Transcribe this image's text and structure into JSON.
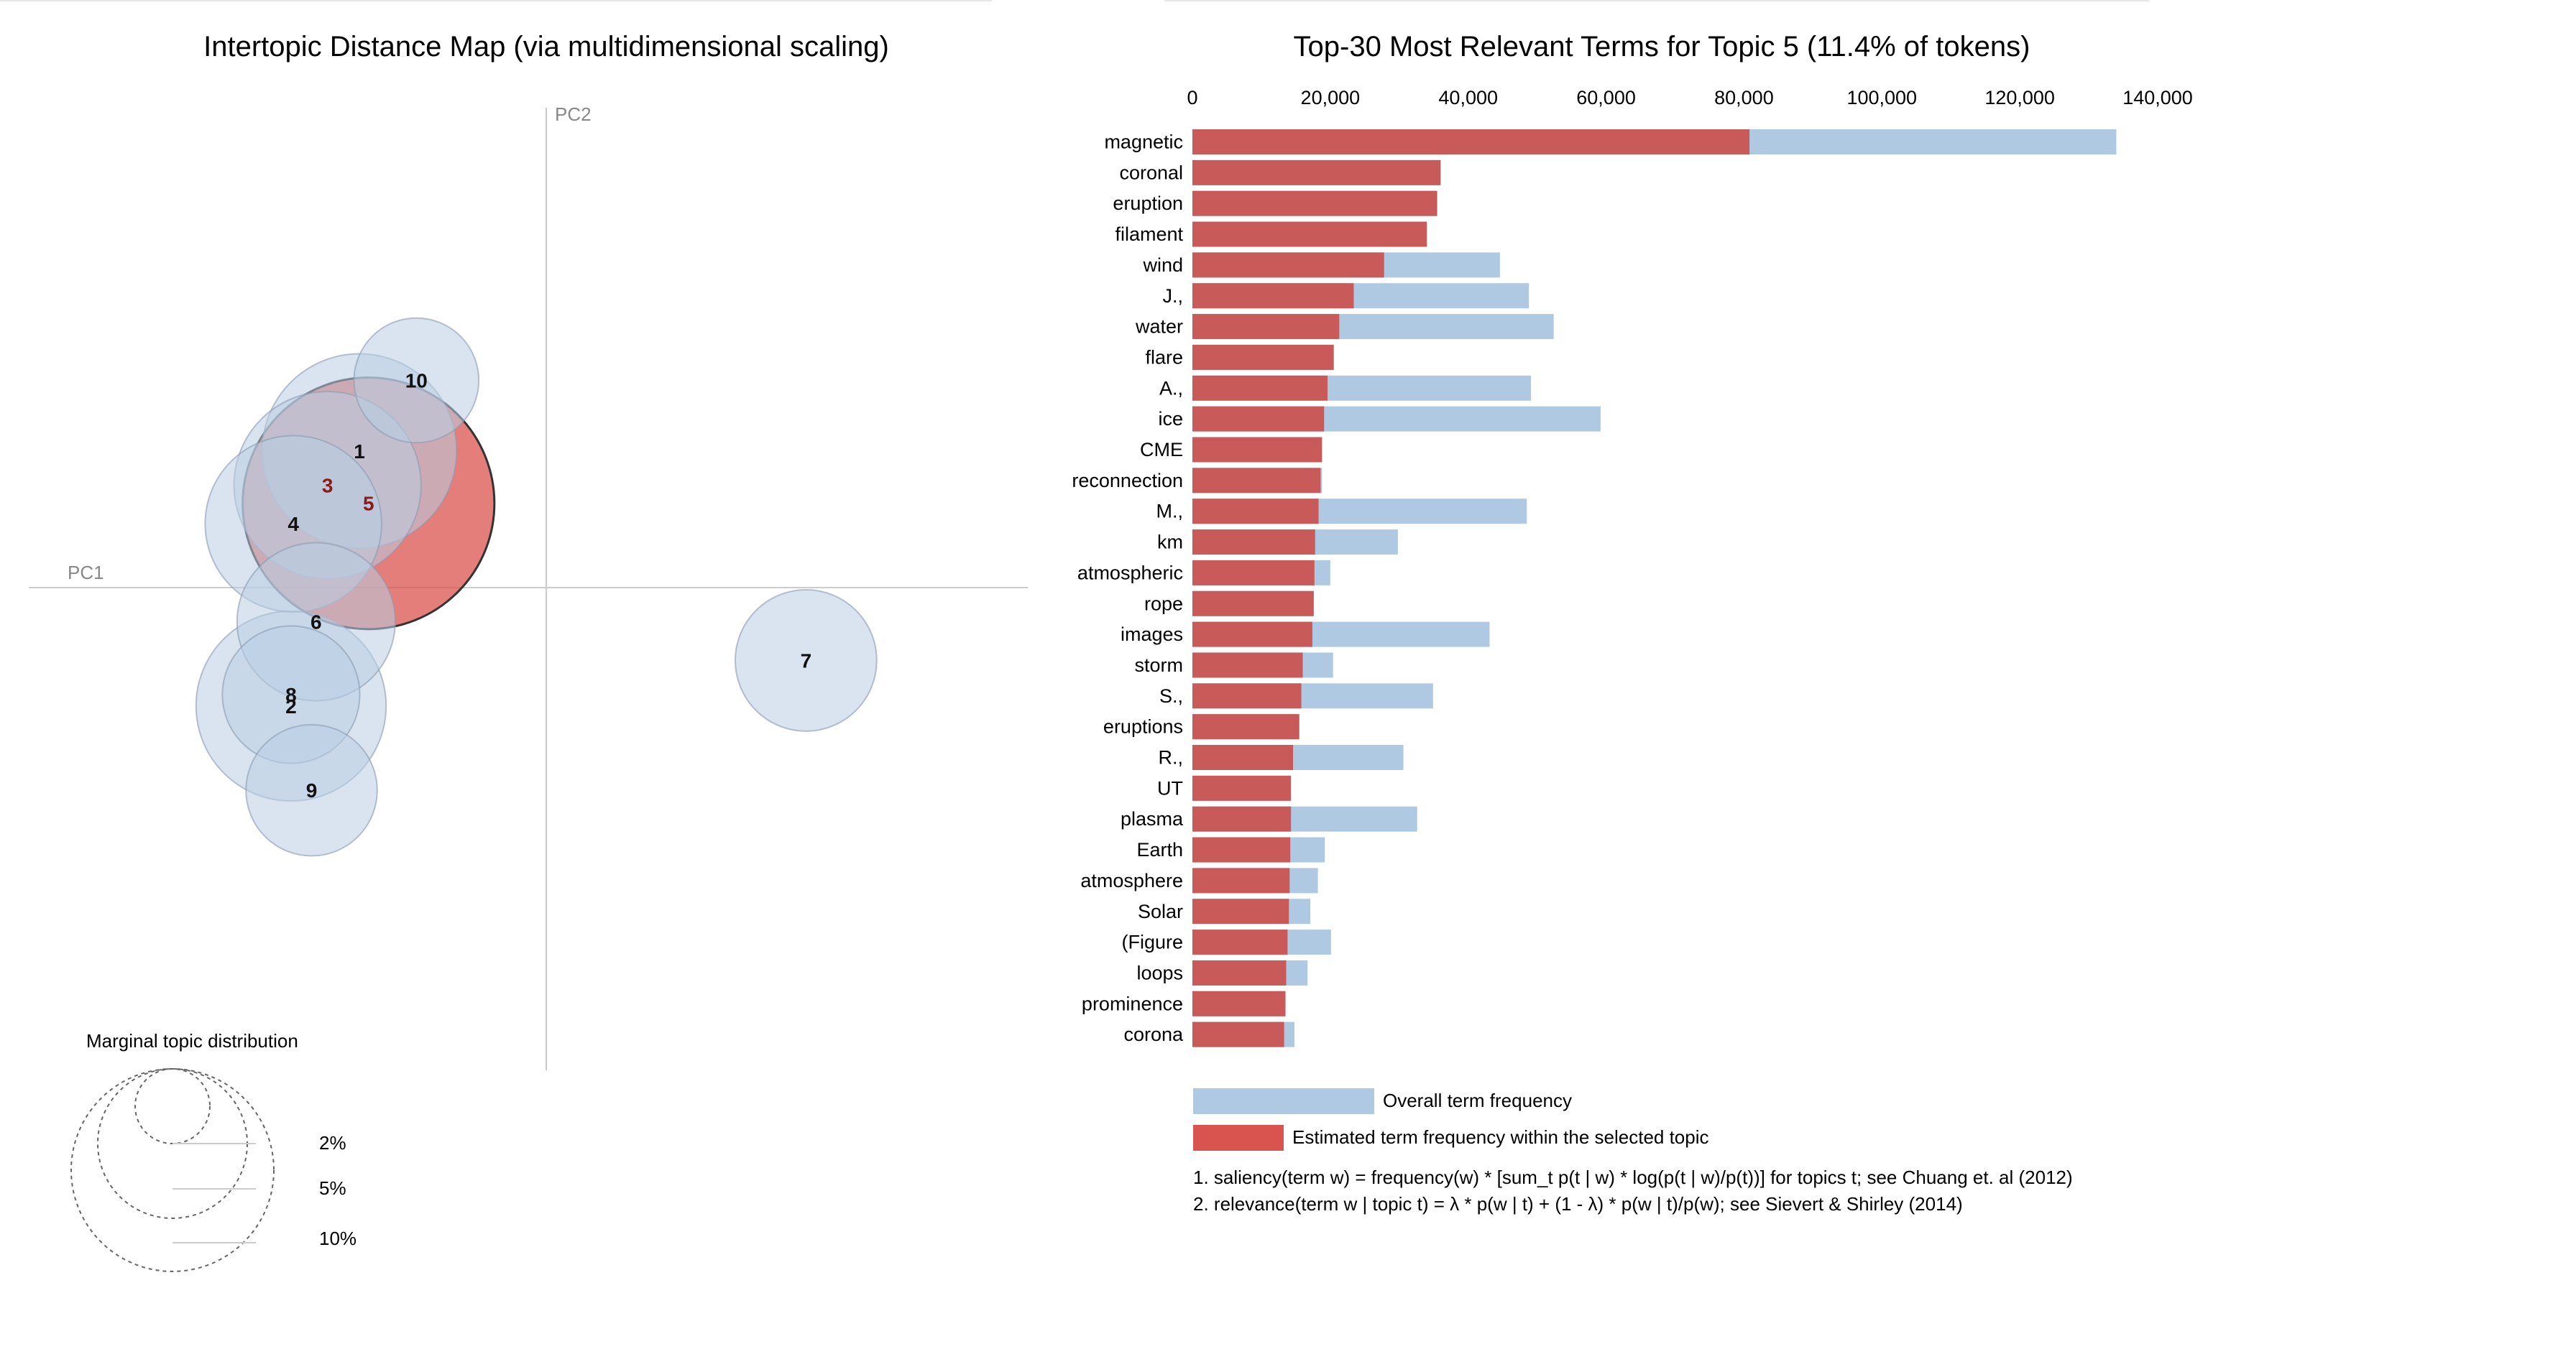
{
  "left_panel": {
    "title": "Intertopic Distance Map (via multidimensional scaling)",
    "axis_x_label": "PC1",
    "axis_y_label": "PC2",
    "selected_topic": "5",
    "bubbles": [
      {
        "topic": "1",
        "pc1": -0.082,
        "pc2": 0.06,
        "size_pct": 6.8
      },
      {
        "topic": "2",
        "pc1": -0.112,
        "pc2": -0.052,
        "size_pct": 6.5
      },
      {
        "topic": "3",
        "pc1": -0.096,
        "pc2": 0.045,
        "size_pct": 6.3
      },
      {
        "topic": "4",
        "pc1": -0.111,
        "pc2": 0.028,
        "size_pct": 5.6
      },
      {
        "topic": "5",
        "pc1": -0.078,
        "pc2": 0.037,
        "size_pct": 11.4
      },
      {
        "topic": "6",
        "pc1": -0.101,
        "pc2": -0.015,
        "size_pct": 4.5
      },
      {
        "topic": "7",
        "pc1": 0.114,
        "pc2": -0.032,
        "size_pct": 3.6
      },
      {
        "topic": "8",
        "pc1": -0.112,
        "pc2": -0.047,
        "size_pct": 3.4
      },
      {
        "topic": "9",
        "pc1": -0.103,
        "pc2": -0.089,
        "size_pct": 3.1
      },
      {
        "topic": "10",
        "pc1": -0.057,
        "pc2": 0.091,
        "size_pct": 2.8
      }
    ],
    "marginal": {
      "title": "Marginal topic distribution",
      "labels": [
        "2%",
        "5%",
        "10%"
      ],
      "values_pct": [
        2,
        5,
        10
      ]
    }
  },
  "chart_data": {
    "type": "bar",
    "title": "Top-30 Most Relevant Terms for Topic 5 (11.4% of tokens)",
    "orientation": "horizontal",
    "xlim": [
      0,
      140000
    ],
    "x_ticks": [
      "0",
      "20,000",
      "40,000",
      "60,000",
      "80,000",
      "100,000",
      "120,000",
      "140,000"
    ],
    "x_tick_values": [
      0,
      20000,
      40000,
      60000,
      80000,
      100000,
      120000,
      140000
    ],
    "categories": [
      "magnetic",
      "coronal",
      "eruption",
      "filament",
      "wind",
      "J.,",
      "water",
      "flare",
      "A.,",
      "ice",
      "CME",
      "reconnection",
      "M.,",
      "km",
      "atmospheric",
      "rope",
      "images",
      "storm",
      "S.,",
      "eruptions",
      "R.,",
      "UT",
      "plasma",
      "Earth",
      "atmosphere",
      "Solar",
      "(Figure",
      "loops",
      "prominence",
      "corona"
    ],
    "series": [
      {
        "name": "Overall term frequency",
        "color": "#b0c9e2",
        "values": [
          134000,
          36000,
          35500,
          34000,
          44600,
          48800,
          52400,
          20500,
          49100,
          59200,
          18800,
          18800,
          48500,
          29800,
          20000,
          17600,
          43100,
          20400,
          34900,
          15500,
          30600,
          14300,
          32600,
          19200,
          18200,
          17100,
          20100,
          16700,
          13500,
          14800
        ]
      },
      {
        "name": "Estimated term frequency within the selected topic",
        "color": "#c95a5a",
        "values": [
          80800,
          36000,
          35500,
          34000,
          27800,
          23400,
          21300,
          20500,
          19600,
          19100,
          18800,
          18600,
          18300,
          17800,
          17700,
          17600,
          17400,
          16000,
          15800,
          15500,
          14600,
          14300,
          14300,
          14200,
          14100,
          14000,
          13800,
          13600,
          13500,
          13300
        ]
      }
    ],
    "legend_position": "bottom-left"
  },
  "footnotes": [
    "1. saliency(term w) = frequency(w) * [sum_t p(t | w) * log(p(t | w)/p(t))] for topics t; see Chuang et. al (2012)",
    "2. relevance(term w | topic t) = λ * p(w | t) + (1 - λ) * p(w | t)/p(w); see Sievert & Shirley (2014)"
  ],
  "colors": {
    "bubble_fill": "#b9cde3",
    "bubble_stroke": "#8a9bb0",
    "selected_fill": "#d9534f",
    "selected_stroke": "#333333",
    "axis_line": "#cccccc",
    "text": "#000000",
    "axis_text": "#888888"
  }
}
